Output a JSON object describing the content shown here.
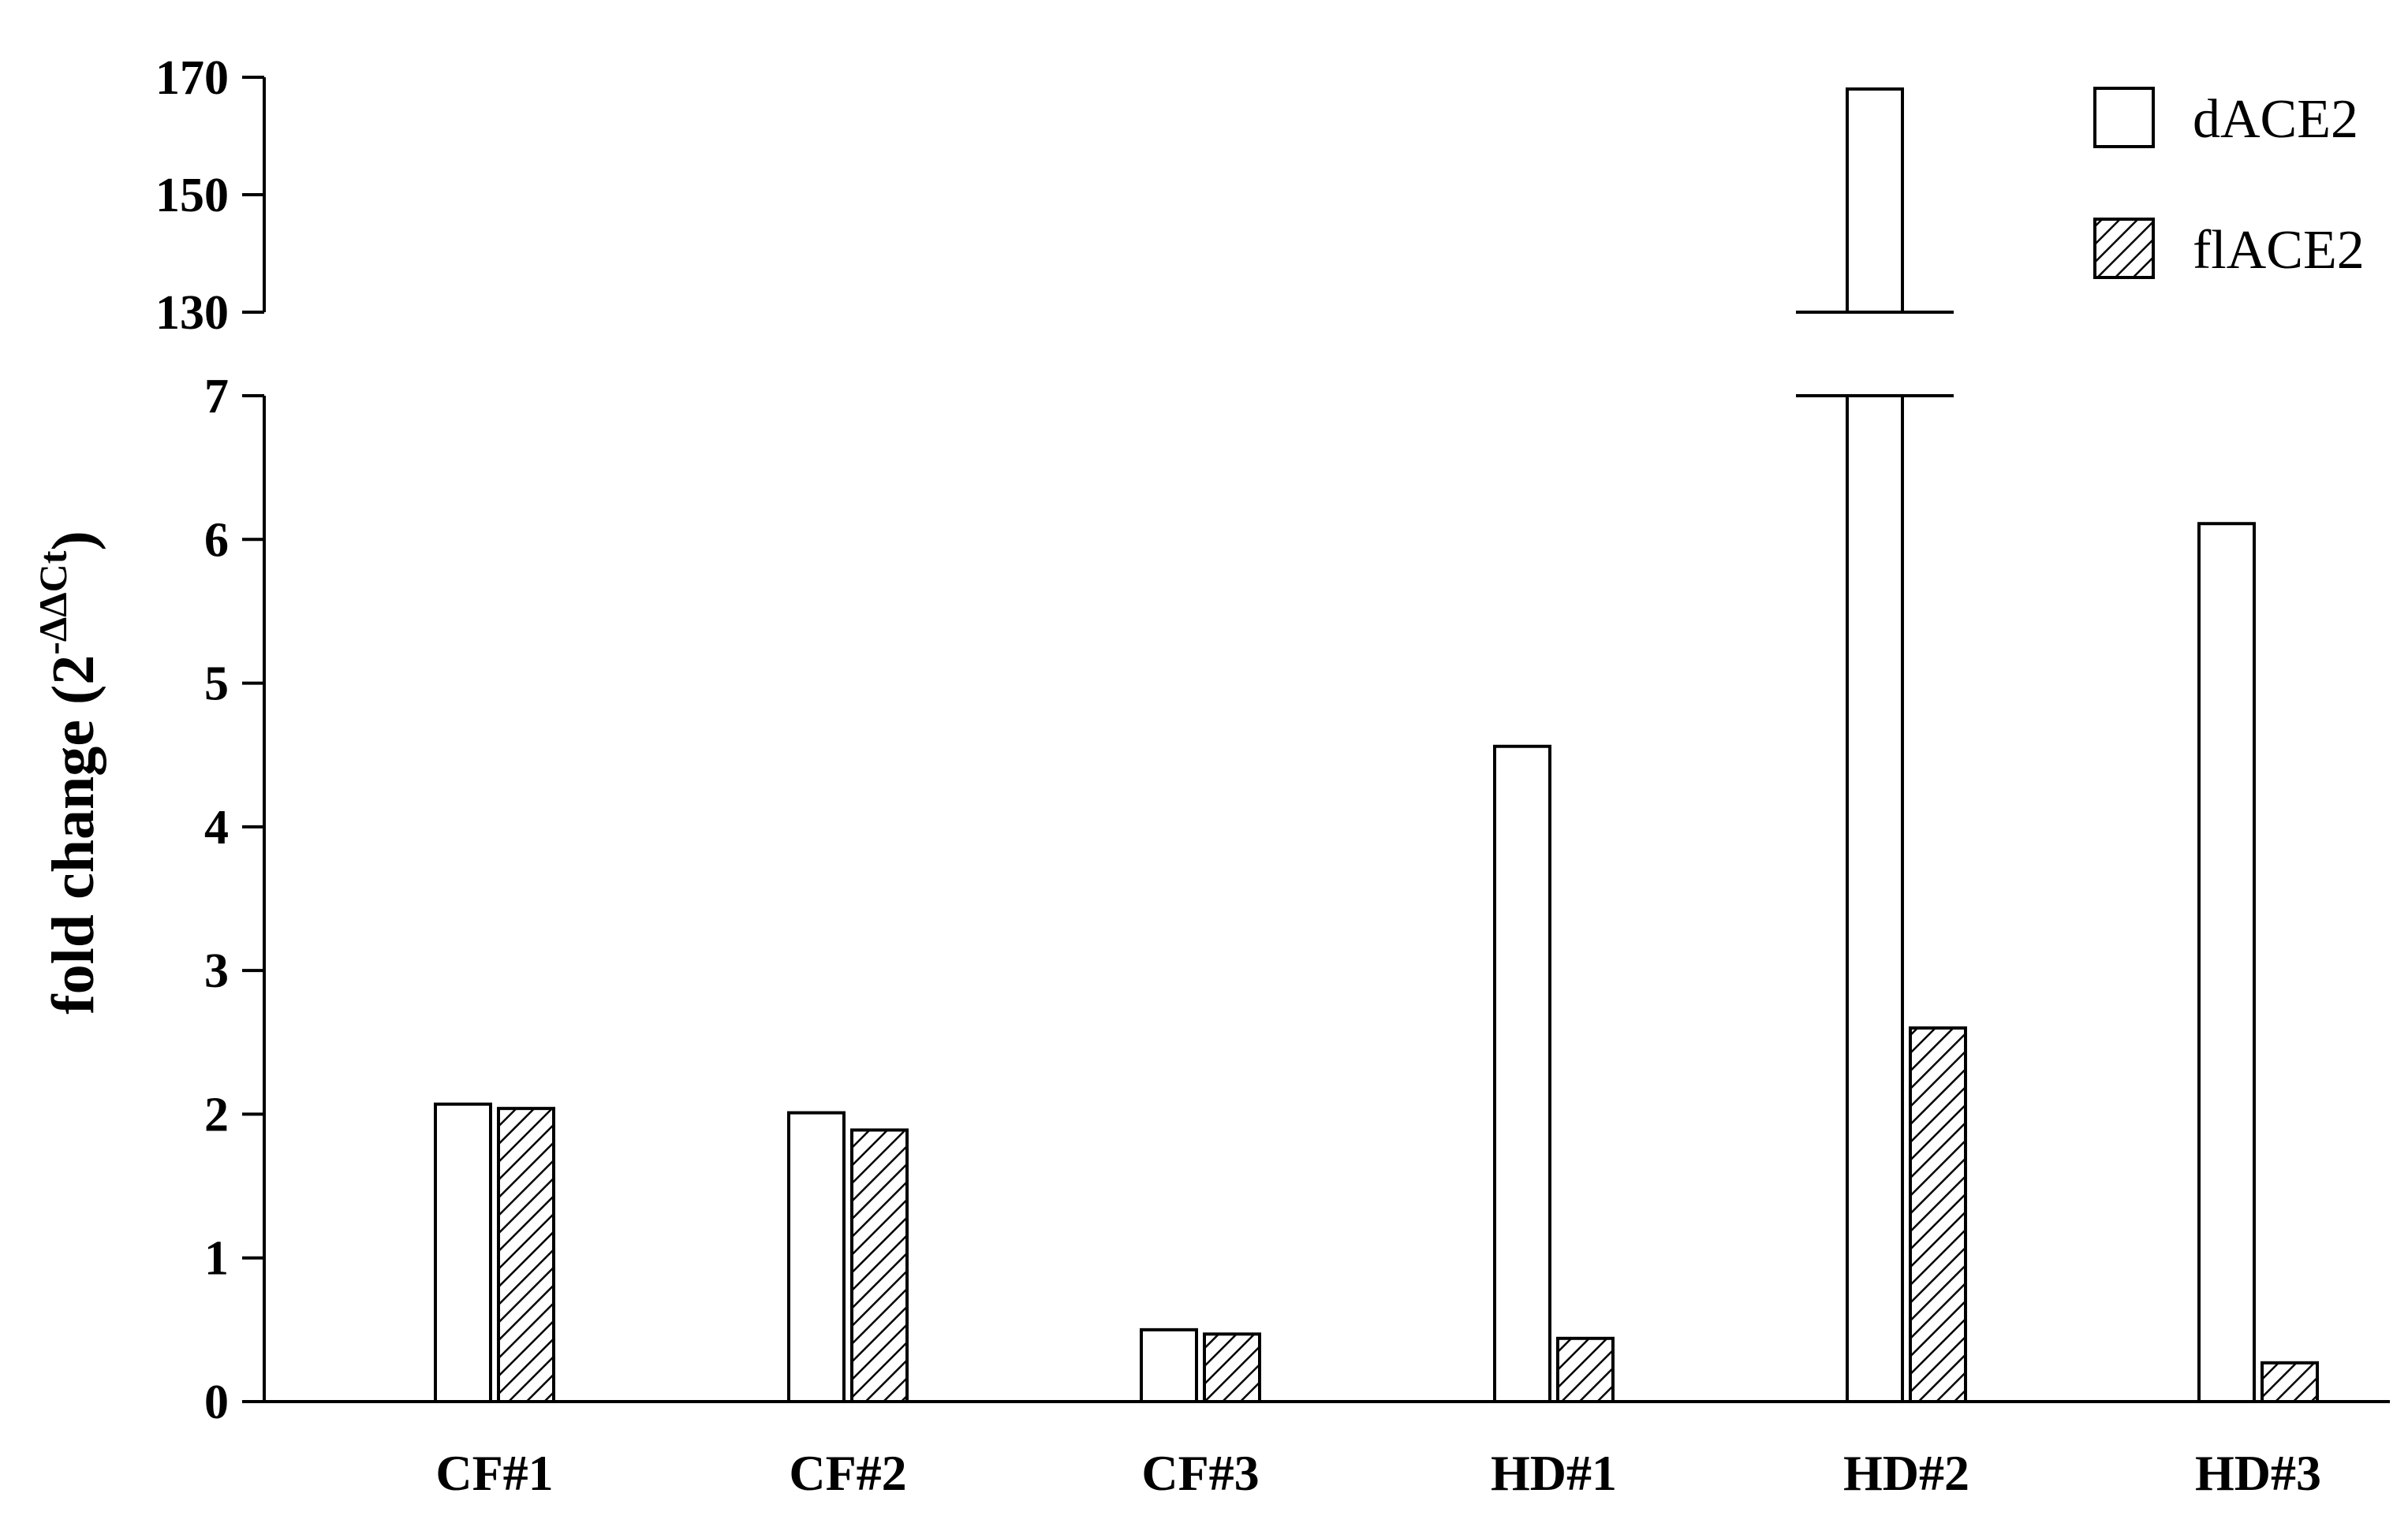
{
  "chart_data": {
    "type": "bar",
    "ylabel": "fold change (2",
    "ylabel_superscript": "-ΔΔCt",
    "categories": [
      "CF#1",
      "CF#2",
      "CF#3",
      "HD#1",
      "HD#2",
      "HD#3"
    ],
    "series": [
      {
        "name": "dACE2",
        "pattern": "open",
        "values": [
          2.07,
          2.01,
          0.5,
          4.56,
          168,
          6.11
        ]
      },
      {
        "name": "flACE2",
        "pattern": "hatched",
        "values": [
          2.04,
          1.89,
          0.47,
          0.44,
          2.6,
          0.27
        ]
      }
    ],
    "y_axis_broken": true,
    "lower_segment": {
      "ylim": [
        0,
        7
      ],
      "ticks": [
        "0",
        "1",
        "2",
        "3",
        "4",
        "5",
        "6",
        "7"
      ]
    },
    "upper_segment": {
      "ylim": [
        130,
        170
      ],
      "ticks": [
        "130",
        "150",
        "170"
      ]
    },
    "legend_position": "top-right",
    "colors": {
      "axis": "#000000",
      "bar_fill": "#ffffff",
      "hatch": "#000000"
    }
  }
}
